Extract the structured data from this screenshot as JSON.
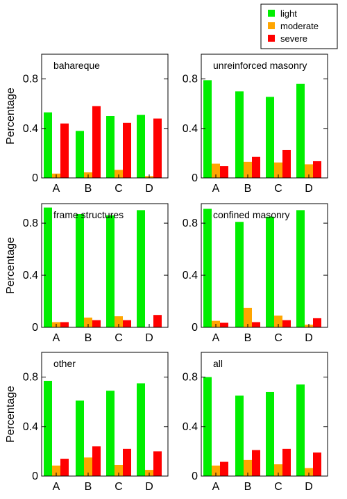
{
  "legend": [
    {
      "key": "light",
      "label": "light",
      "color": "#00ee00"
    },
    {
      "key": "moderate",
      "label": "moderate",
      "color": "#ffa500"
    },
    {
      "key": "severe",
      "label": "severe",
      "color": "#ff0000"
    }
  ],
  "chart_data": [
    {
      "type": "bar",
      "title": "bahareque",
      "ylabel": "Percentage",
      "categories": [
        "A",
        "B",
        "C",
        "D"
      ],
      "ylim": [
        0,
        1.0
      ],
      "yticks": [
        "0",
        "0.4",
        "0.8"
      ],
      "series": [
        {
          "name": "light",
          "values": [
            0.53,
            0.38,
            0.5,
            0.51
          ]
        },
        {
          "name": "moderate",
          "values": [
            0.035,
            0.045,
            0.065,
            0.015
          ]
        },
        {
          "name": "severe",
          "values": [
            0.44,
            0.58,
            0.445,
            0.48
          ]
        }
      ]
    },
    {
      "type": "bar",
      "title": "unreinforced masonry",
      "ylabel": "",
      "categories": [
        "A",
        "B",
        "C",
        "D"
      ],
      "ylim": [
        0,
        1.0
      ],
      "yticks": [
        "0",
        "0.4",
        "0.8"
      ],
      "series": [
        {
          "name": "light",
          "values": [
            0.79,
            0.7,
            0.655,
            0.76
          ]
        },
        {
          "name": "moderate",
          "values": [
            0.115,
            0.13,
            0.125,
            0.11
          ]
        },
        {
          "name": "severe",
          "values": [
            0.095,
            0.17,
            0.225,
            0.135
          ]
        }
      ]
    },
    {
      "type": "bar",
      "title": "frame structures",
      "ylabel": "Percentage",
      "categories": [
        "A",
        "B",
        "C",
        "D"
      ],
      "ylim": [
        0,
        0.95
      ],
      "yticks": [
        "0",
        "0.4",
        "0.8"
      ],
      "series": [
        {
          "name": "light",
          "values": [
            0.92,
            0.87,
            0.86,
            0.9
          ]
        },
        {
          "name": "moderate",
          "values": [
            0.04,
            0.075,
            0.085,
            0.0
          ]
        },
        {
          "name": "severe",
          "values": [
            0.04,
            0.055,
            0.055,
            0.095
          ]
        }
      ]
    },
    {
      "type": "bar",
      "title": "confined masonry",
      "ylabel": "",
      "categories": [
        "A",
        "B",
        "C",
        "D"
      ],
      "ylim": [
        0,
        0.95
      ],
      "yticks": [
        "0",
        "0.4",
        "0.8"
      ],
      "series": [
        {
          "name": "light",
          "values": [
            0.91,
            0.81,
            0.85,
            0.9
          ]
        },
        {
          "name": "moderate",
          "values": [
            0.05,
            0.15,
            0.09,
            0.02
          ]
        },
        {
          "name": "severe",
          "values": [
            0.035,
            0.04,
            0.055,
            0.07
          ]
        }
      ]
    },
    {
      "type": "bar",
      "title": "other",
      "ylabel": "Percentage",
      "categories": [
        "A",
        "B",
        "C",
        "D"
      ],
      "ylim": [
        0,
        1.0
      ],
      "yticks": [
        "0",
        "0.4",
        "0.8"
      ],
      "series": [
        {
          "name": "light",
          "values": [
            0.77,
            0.61,
            0.69,
            0.75
          ]
        },
        {
          "name": "moderate",
          "values": [
            0.085,
            0.15,
            0.09,
            0.05
          ]
        },
        {
          "name": "severe",
          "values": [
            0.14,
            0.24,
            0.22,
            0.2
          ]
        }
      ]
    },
    {
      "type": "bar",
      "title": "all",
      "ylabel": "",
      "categories": [
        "A",
        "B",
        "C",
        "D"
      ],
      "ylim": [
        0,
        1.0
      ],
      "yticks": [
        "0",
        "0.4",
        "0.8"
      ],
      "series": [
        {
          "name": "light",
          "values": [
            0.8,
            0.65,
            0.68,
            0.74
          ]
        },
        {
          "name": "moderate",
          "values": [
            0.085,
            0.13,
            0.095,
            0.065
          ]
        },
        {
          "name": "severe",
          "values": [
            0.115,
            0.21,
            0.22,
            0.19
          ]
        }
      ]
    }
  ]
}
